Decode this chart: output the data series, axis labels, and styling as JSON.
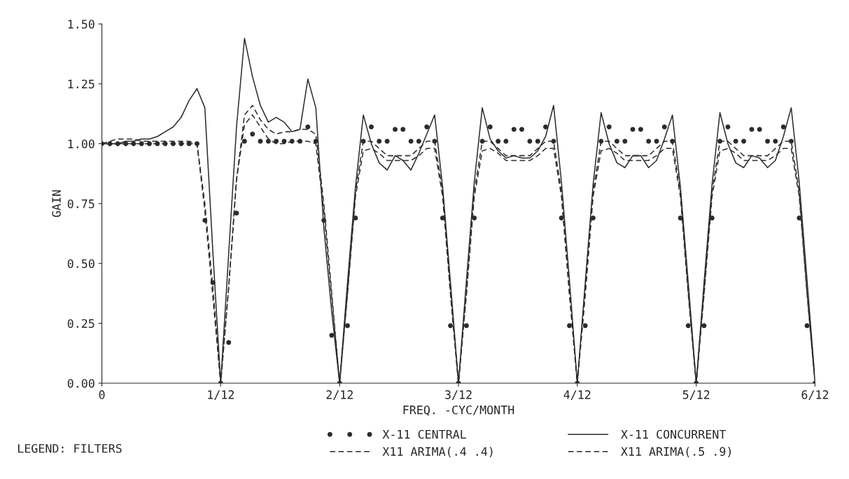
{
  "chart_data": {
    "type": "line",
    "xlabel": "FREQ. -CYC/MONTH",
    "ylabel": "GAIN",
    "legend_title": "LEGEND: FILTERS",
    "xlim": [
      0,
      0.5
    ],
    "ylim": [
      0,
      1.5
    ],
    "xticks": [
      0,
      {
        "value": 0.0833,
        "label": "1/12"
      },
      {
        "value": 0.1667,
        "label": "2/12"
      },
      {
        "value": 0.25,
        "label": "3/12"
      },
      {
        "value": 0.3333,
        "label": "4/12"
      },
      {
        "value": 0.4167,
        "label": "5/12"
      },
      {
        "value": 0.5,
        "label": "6/12"
      }
    ],
    "yticks": [
      {
        "value": 0,
        "label": "0.00"
      },
      {
        "value": 0.25,
        "label": "0.25"
      },
      {
        "value": 0.5,
        "label": "0.50"
      },
      {
        "value": 0.75,
        "label": "0.75"
      },
      {
        "value": 1.0,
        "label": "1.00"
      },
      {
        "value": 1.25,
        "label": "1.25"
      },
      {
        "value": 1.5,
        "label": "1.50"
      }
    ],
    "grid": false,
    "legend": "bottom",
    "x": [
      0,
      0.0056,
      0.0111,
      0.0167,
      0.0222,
      0.0278,
      0.0333,
      0.0389,
      0.0444,
      0.05,
      0.0556,
      0.0611,
      0.0667,
      0.0722,
      0.0778,
      0.0833,
      0.0889,
      0.0944,
      0.1,
      0.1056,
      0.1111,
      0.1167,
      0.1222,
      0.1278,
      0.1333,
      0.1389,
      0.1444,
      0.15,
      0.1556,
      0.1611,
      0.1667,
      0.1722,
      0.1778,
      0.1833,
      0.1889,
      0.1944,
      0.2,
      0.2056,
      0.2111,
      0.2167,
      0.2222,
      0.2278,
      0.2333,
      0.2389,
      0.2444,
      0.25,
      0.2556,
      0.2611,
      0.2667,
      0.2722,
      0.2778,
      0.2833,
      0.2889,
      0.2944,
      0.3,
      0.3056,
      0.3111,
      0.3167,
      0.3222,
      0.3278,
      0.3333,
      0.3389,
      0.3444,
      0.35,
      0.3556,
      0.3611,
      0.3667,
      0.3722,
      0.3778,
      0.3833,
      0.3889,
      0.3944,
      0.4,
      0.4056,
      0.4111,
      0.4167,
      0.4222,
      0.4278,
      0.4333,
      0.4389,
      0.4444,
      0.45,
      0.4556,
      0.4611,
      0.4667,
      0.4722,
      0.4778,
      0.4833,
      0.4889,
      0.4944,
      0.5
    ],
    "series": [
      {
        "name": "X-11 CENTRAL",
        "type": "scatter",
        "marker": "circle",
        "color": "#2b2b2b",
        "values": [
          1.0,
          1.0,
          1.0,
          1.0,
          1.0,
          1.0,
          1.0,
          1.0,
          1.0,
          1.0,
          1.0,
          1.0,
          1.0,
          0.68,
          0.42,
          0,
          0.17,
          0.71,
          1.01,
          1.04,
          1.01,
          1.01,
          1.01,
          1.01,
          1.01,
          1.01,
          1.07,
          1.01,
          0.68,
          0.2,
          0,
          0.24,
          0.69,
          1.01,
          1.07,
          1.01,
          1.01,
          1.06,
          1.06,
          1.01,
          1.01,
          1.07,
          1.01,
          0.69,
          0.24,
          0,
          0.24,
          0.69,
          1.01,
          1.07,
          1.01,
          1.01,
          1.06,
          1.06,
          1.01,
          1.01,
          1.07,
          1.01,
          0.69,
          0.24,
          0,
          0.24,
          0.69,
          1.01,
          1.07,
          1.01,
          1.01,
          1.06,
          1.06,
          1.01,
          1.01,
          1.07,
          1.01,
          0.69,
          0.24,
          0,
          0.24,
          0.69,
          1.01,
          1.07,
          1.01,
          1.01,
          1.06,
          1.06,
          1.01,
          1.01,
          1.07,
          1.01,
          0.69,
          0.24,
          0
        ]
      },
      {
        "name": "X11 ARIMA(.4 .4)",
        "line_style": "dashed",
        "color": "#2b2b2b",
        "values": [
          1.0,
          1.01,
          1.02,
          1.02,
          1.02,
          1.01,
          1.01,
          1.01,
          1.01,
          1.01,
          1.01,
          1.01,
          1.0,
          0.75,
          0.4,
          0,
          0.4,
          0.85,
          1.12,
          1.16,
          1.1,
          1.06,
          1.04,
          1.05,
          1.05,
          1.06,
          1.06,
          1.04,
          0.75,
          0.38,
          0,
          0.38,
          0.8,
          1.01,
          1.01,
          0.98,
          0.95,
          0.95,
          0.95,
          0.95,
          0.98,
          1.01,
          1.01,
          0.8,
          0.38,
          0,
          0.38,
          0.8,
          1.01,
          1.01,
          0.98,
          0.95,
          0.95,
          0.95,
          0.95,
          0.98,
          1.01,
          1.01,
          0.8,
          0.38,
          0,
          0.38,
          0.8,
          1.01,
          1.01,
          0.98,
          0.95,
          0.95,
          0.95,
          0.95,
          0.98,
          1.01,
          1.01,
          0.8,
          0.38,
          0,
          0.38,
          0.8,
          1.01,
          1.01,
          0.98,
          0.95,
          0.95,
          0.95,
          0.95,
          0.98,
          1.01,
          1.01,
          0.8,
          0.38,
          0
        ]
      },
      {
        "name": "X-11 CONCURRENT",
        "line_style": "solid",
        "color": "#2b2b2b",
        "values": [
          1.0,
          1.0,
          1.0,
          1.01,
          1.01,
          1.02,
          1.02,
          1.03,
          1.05,
          1.07,
          1.11,
          1.18,
          1.23,
          1.15,
          0.55,
          0,
          0.54,
          1.07,
          1.44,
          1.28,
          1.16,
          1.09,
          1.11,
          1.09,
          1.05,
          1.06,
          1.27,
          1.15,
          0.65,
          0.3,
          0,
          0.42,
          0.82,
          1.12,
          1.0,
          0.92,
          0.89,
          0.95,
          0.93,
          0.89,
          0.96,
          1.04,
          1.12,
          0.82,
          0.42,
          0,
          0.43,
          0.84,
          1.15,
          1.02,
          0.97,
          0.94,
          0.95,
          0.94,
          0.94,
          0.97,
          1.03,
          1.16,
          0.84,
          0.43,
          0,
          0.42,
          0.83,
          1.13,
          1.0,
          0.92,
          0.9,
          0.95,
          0.95,
          0.9,
          0.93,
          1.02,
          1.12,
          0.82,
          0.42,
          0,
          0.42,
          0.83,
          1.13,
          1.0,
          0.92,
          0.9,
          0.95,
          0.94,
          0.9,
          0.93,
          1.03,
          1.15,
          0.84,
          0.43,
          0.01
        ]
      },
      {
        "name": "X11 ARIMA(.5 .9)",
        "line_style": "dashed",
        "color": "#2b2b2b",
        "values": [
          1.0,
          1.0,
          1.0,
          1.0,
          1.0,
          1.0,
          1.0,
          1.0,
          1.0,
          1.0,
          1.0,
          1.0,
          1.0,
          0.72,
          0.36,
          0,
          0.4,
          0.85,
          1.08,
          1.12,
          1.07,
          1.02,
          1.0,
          1.0,
          1.01,
          1.01,
          1.01,
          1.0,
          0.72,
          0.36,
          0,
          0.37,
          0.78,
          0.97,
          0.98,
          0.96,
          0.93,
          0.93,
          0.93,
          0.93,
          0.95,
          0.98,
          0.98,
          0.78,
          0.37,
          0,
          0.37,
          0.78,
          0.97,
          0.98,
          0.96,
          0.93,
          0.93,
          0.93,
          0.93,
          0.95,
          0.98,
          0.98,
          0.78,
          0.37,
          0,
          0.37,
          0.78,
          0.97,
          0.98,
          0.96,
          0.93,
          0.93,
          0.93,
          0.93,
          0.95,
          0.98,
          0.98,
          0.78,
          0.37,
          0,
          0.37,
          0.78,
          0.97,
          0.98,
          0.96,
          0.93,
          0.93,
          0.93,
          0.93,
          0.95,
          0.98,
          0.98,
          0.78,
          0.37,
          0
        ]
      }
    ]
  }
}
